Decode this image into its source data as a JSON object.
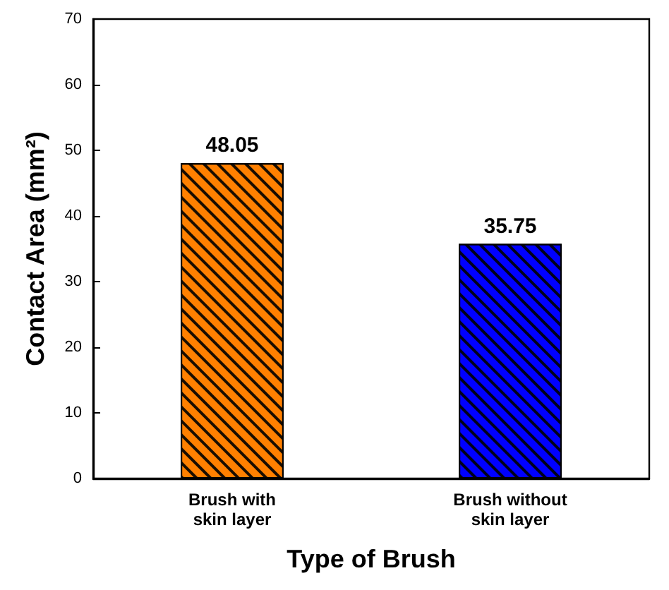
{
  "chart_data": {
    "type": "bar",
    "categories": [
      "Brush with\nskin layer",
      "Brush without\nskin layer"
    ],
    "values": [
      48.05,
      35.75
    ],
    "colors": [
      "#ff8000",
      "#0000ff"
    ],
    "xlabel": "Type of Brush",
    "ylabel": "Contact Area (mm²)",
    "ylim": [
      0,
      70
    ],
    "yticks": [
      0,
      10,
      20,
      30,
      40,
      50,
      60,
      70
    ],
    "data_labels": true
  }
}
